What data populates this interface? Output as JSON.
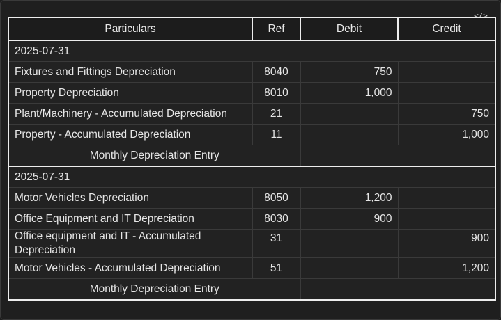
{
  "toolbar": {
    "code_toggle_label": "</>"
  },
  "table": {
    "headers": {
      "particulars": "Particulars",
      "ref": "Ref",
      "debit": "Debit",
      "credit": "Credit"
    },
    "entries": [
      {
        "date": "2025-07-31",
        "lines": [
          {
            "particulars": "Fixtures and Fittings Depreciation",
            "ref": "8040",
            "debit": "750",
            "credit": ""
          },
          {
            "particulars": "Property Depreciation",
            "ref": "8010",
            "debit": "1,000",
            "credit": ""
          },
          {
            "particulars": "Plant/Machinery - Accumulated Depreciation",
            "ref": "21",
            "debit": "",
            "credit": "750"
          },
          {
            "particulars": "Property - Accumulated Depreciation",
            "ref": "11",
            "debit": "",
            "credit": "1,000"
          }
        ],
        "note": "Monthly Depreciation Entry"
      },
      {
        "date": "2025-07-31",
        "lines": [
          {
            "particulars": "Motor Vehicles Depreciation",
            "ref": "8050",
            "debit": "1,200",
            "credit": ""
          },
          {
            "particulars": "Office Equipment and IT Depreciation",
            "ref": "8030",
            "debit": "900",
            "credit": ""
          },
          {
            "particulars": "Office equipment and IT - Accumulated Depreciation",
            "ref": "31",
            "debit": "",
            "credit": "900"
          },
          {
            "particulars": "Motor Vehicles - Accumulated Depreciation",
            "ref": "51",
            "debit": "",
            "credit": "1,200"
          }
        ],
        "note": "Monthly Depreciation Entry"
      }
    ]
  }
}
